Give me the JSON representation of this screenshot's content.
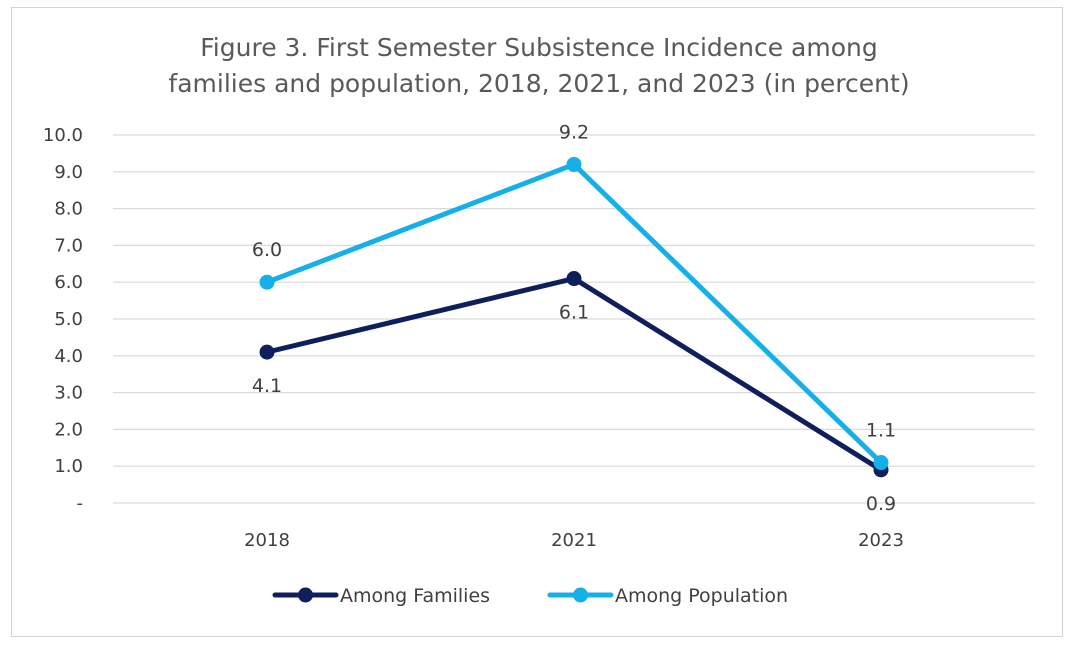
{
  "chart_data": {
    "type": "line",
    "title_lines": [
      "Figure 3. First Semester Subsistence Incidence among",
      "families and population, 2018, 2021, and 2023 (in percent)"
    ],
    "categories": [
      "2018",
      "2021",
      "2023"
    ],
    "y_ticks": [
      "-",
      "1.0",
      "2.0",
      "3.0",
      "4.0",
      "5.0",
      "6.0",
      "7.0",
      "8.0",
      "9.0",
      "10.0"
    ],
    "ylim": [
      0,
      10
    ],
    "grid": true,
    "legend_position": "bottom-center",
    "series": [
      {
        "name": "Among Families",
        "values": [
          4.1,
          6.1,
          0.9
        ],
        "labels": [
          "4.1",
          "6.1",
          "0.9"
        ],
        "label_position": "below",
        "color": "#0e1f5b"
      },
      {
        "name": "Among Population",
        "values": [
          6.0,
          9.2,
          1.1
        ],
        "labels": [
          "6.0",
          "9.2",
          "1.1"
        ],
        "label_position": "above",
        "color": "#16b0e8"
      }
    ]
  }
}
